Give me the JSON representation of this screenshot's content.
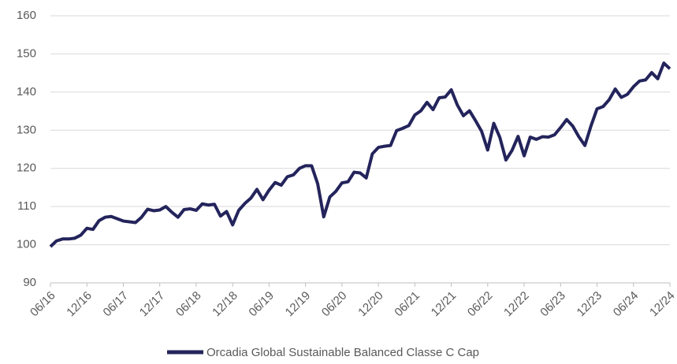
{
  "chart_data": {
    "type": "line",
    "categories": [
      "06/16",
      null,
      null,
      null,
      null,
      null,
      "12/16",
      null,
      null,
      null,
      null,
      null,
      "06/17",
      null,
      null,
      null,
      null,
      null,
      "12/17",
      null,
      null,
      null,
      null,
      null,
      "06/18",
      null,
      null,
      null,
      null,
      null,
      "12/18",
      null,
      null,
      null,
      null,
      null,
      "06/19",
      null,
      null,
      null,
      null,
      null,
      "12/19",
      null,
      null,
      null,
      null,
      null,
      "06/20",
      null,
      null,
      null,
      null,
      null,
      "12/20",
      null,
      null,
      null,
      null,
      null,
      "06/21",
      null,
      null,
      null,
      null,
      null,
      "12/21",
      null,
      null,
      null,
      null,
      null,
      "06/22",
      null,
      null,
      null,
      null,
      null,
      "12/22",
      null,
      null,
      null,
      null,
      null,
      "06/23",
      null,
      null,
      null,
      null,
      null,
      "12/23",
      null,
      null,
      null,
      null,
      null,
      "06/24",
      null,
      null,
      null,
      null,
      null,
      "12/24"
    ],
    "series": [
      {
        "name": "Orcadia Global Sustainable Balanced Classe C Cap",
        "color": "#24245c",
        "values": [
          99.5,
          101,
          101.5,
          101.5,
          101.7,
          102.5,
          104.3,
          104,
          106.3,
          107.2,
          107.4,
          106.8,
          106.2,
          106,
          105.8,
          107.2,
          109.3,
          108.9,
          109.1,
          110,
          108.5,
          107.2,
          109.2,
          109.4,
          109,
          110.7,
          110.4,
          110.6,
          107.5,
          108.7,
          105.2,
          109,
          110.8,
          112.2,
          114.5,
          111.8,
          114.3,
          116.3,
          115.6,
          117.8,
          118.3,
          120,
          120.7,
          120.7,
          116,
          107.3,
          112.5,
          114,
          116.2,
          116.5,
          119,
          118.8,
          117.5,
          123.8,
          125.5,
          125.8,
          126,
          129.9,
          130.5,
          131.2,
          134,
          135.1,
          137.3,
          135.4,
          138.5,
          138.7,
          140.6,
          136.6,
          133.8,
          135.1,
          132.5,
          129.7,
          124.8,
          131.8,
          128.1,
          122.2,
          124.7,
          128.4,
          123.3,
          128.2,
          127.6,
          128.3,
          128.2,
          128.8,
          130.7,
          132.8,
          131.1,
          128.3,
          126,
          131.1,
          135.6,
          136.2,
          138,
          140.8,
          138.6,
          139.4,
          141.4,
          142.9,
          143.2,
          145.1,
          143.5,
          147.6,
          146.1
        ]
      }
    ],
    "ylim": [
      90,
      160
    ],
    "yticks": [
      90,
      100,
      110,
      120,
      130,
      140,
      150,
      160
    ],
    "grid": true
  }
}
